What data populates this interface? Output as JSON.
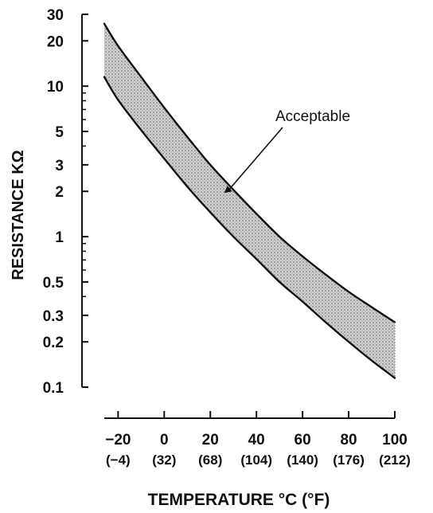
{
  "chart_data": {
    "type": "area",
    "title": "",
    "xlabel": "TEMPERATURE °C (°F)",
    "ylabel": "RESISTANCE KΩ",
    "x_ticks": [
      {
        "value": -20,
        "label": "−20",
        "sub_label": "(−4)"
      },
      {
        "value": 0,
        "label": "0",
        "sub_label": "(32)"
      },
      {
        "value": 20,
        "label": "20",
        "sub_label": "(68)"
      },
      {
        "value": 40,
        "label": "40",
        "sub_label": "(104)"
      },
      {
        "value": 60,
        "label": "60",
        "sub_label": "(140)"
      },
      {
        "value": 80,
        "label": "80",
        "sub_label": "(176)"
      },
      {
        "value": 100,
        "label": "100",
        "sub_label": "(212)"
      }
    ],
    "y_scale": "log",
    "xlim": [
      -26,
      100
    ],
    "ylim": [
      0.1,
      30
    ],
    "y_ticks": [
      {
        "value": 30,
        "label": "30"
      },
      {
        "value": 20,
        "label": "20"
      },
      {
        "value": 10,
        "label": "10"
      },
      {
        "value": 5,
        "label": "5"
      },
      {
        "value": 3,
        "label": "3"
      },
      {
        "value": 2,
        "label": "2"
      },
      {
        "value": 1,
        "label": "1"
      },
      {
        "value": 0.5,
        "label": "0.5"
      },
      {
        "value": 0.3,
        "label": "0.3"
      },
      {
        "value": 0.2,
        "label": "0.2"
      },
      {
        "value": 0.1,
        "label": "0.1"
      }
    ],
    "y_minor_ticks": [
      4,
      6,
      7,
      8,
      9,
      0.4,
      0.6,
      0.7,
      0.8,
      0.9
    ],
    "series": [
      {
        "x": [
          -26,
          -20,
          -10,
          0,
          10,
          20,
          30,
          40,
          50,
          60,
          70,
          80,
          90,
          100
        ],
        "values": [
          26,
          18.5,
          11.5,
          7.2,
          4.6,
          3.0,
          2.05,
          1.42,
          1.0,
          0.74,
          0.56,
          0.43,
          0.34,
          0.27
        ]
      },
      {
        "x": [
          -26,
          -20,
          -10,
          0,
          10,
          20,
          30,
          40,
          50,
          60,
          70,
          80,
          90,
          100
        ],
        "values": [
          11.5,
          8.1,
          5.1,
          3.3,
          2.15,
          1.45,
          1.0,
          0.71,
          0.5,
          0.37,
          0.27,
          0.2,
          0.15,
          0.115
        ]
      }
    ],
    "annotations": [
      {
        "text": "Acceptable",
        "point": {
          "x": 26,
          "y": 1.95
        }
      }
    ],
    "grid": false,
    "colors": {
      "ink": "#111111",
      "band_fill": "#bdbdbd"
    }
  }
}
